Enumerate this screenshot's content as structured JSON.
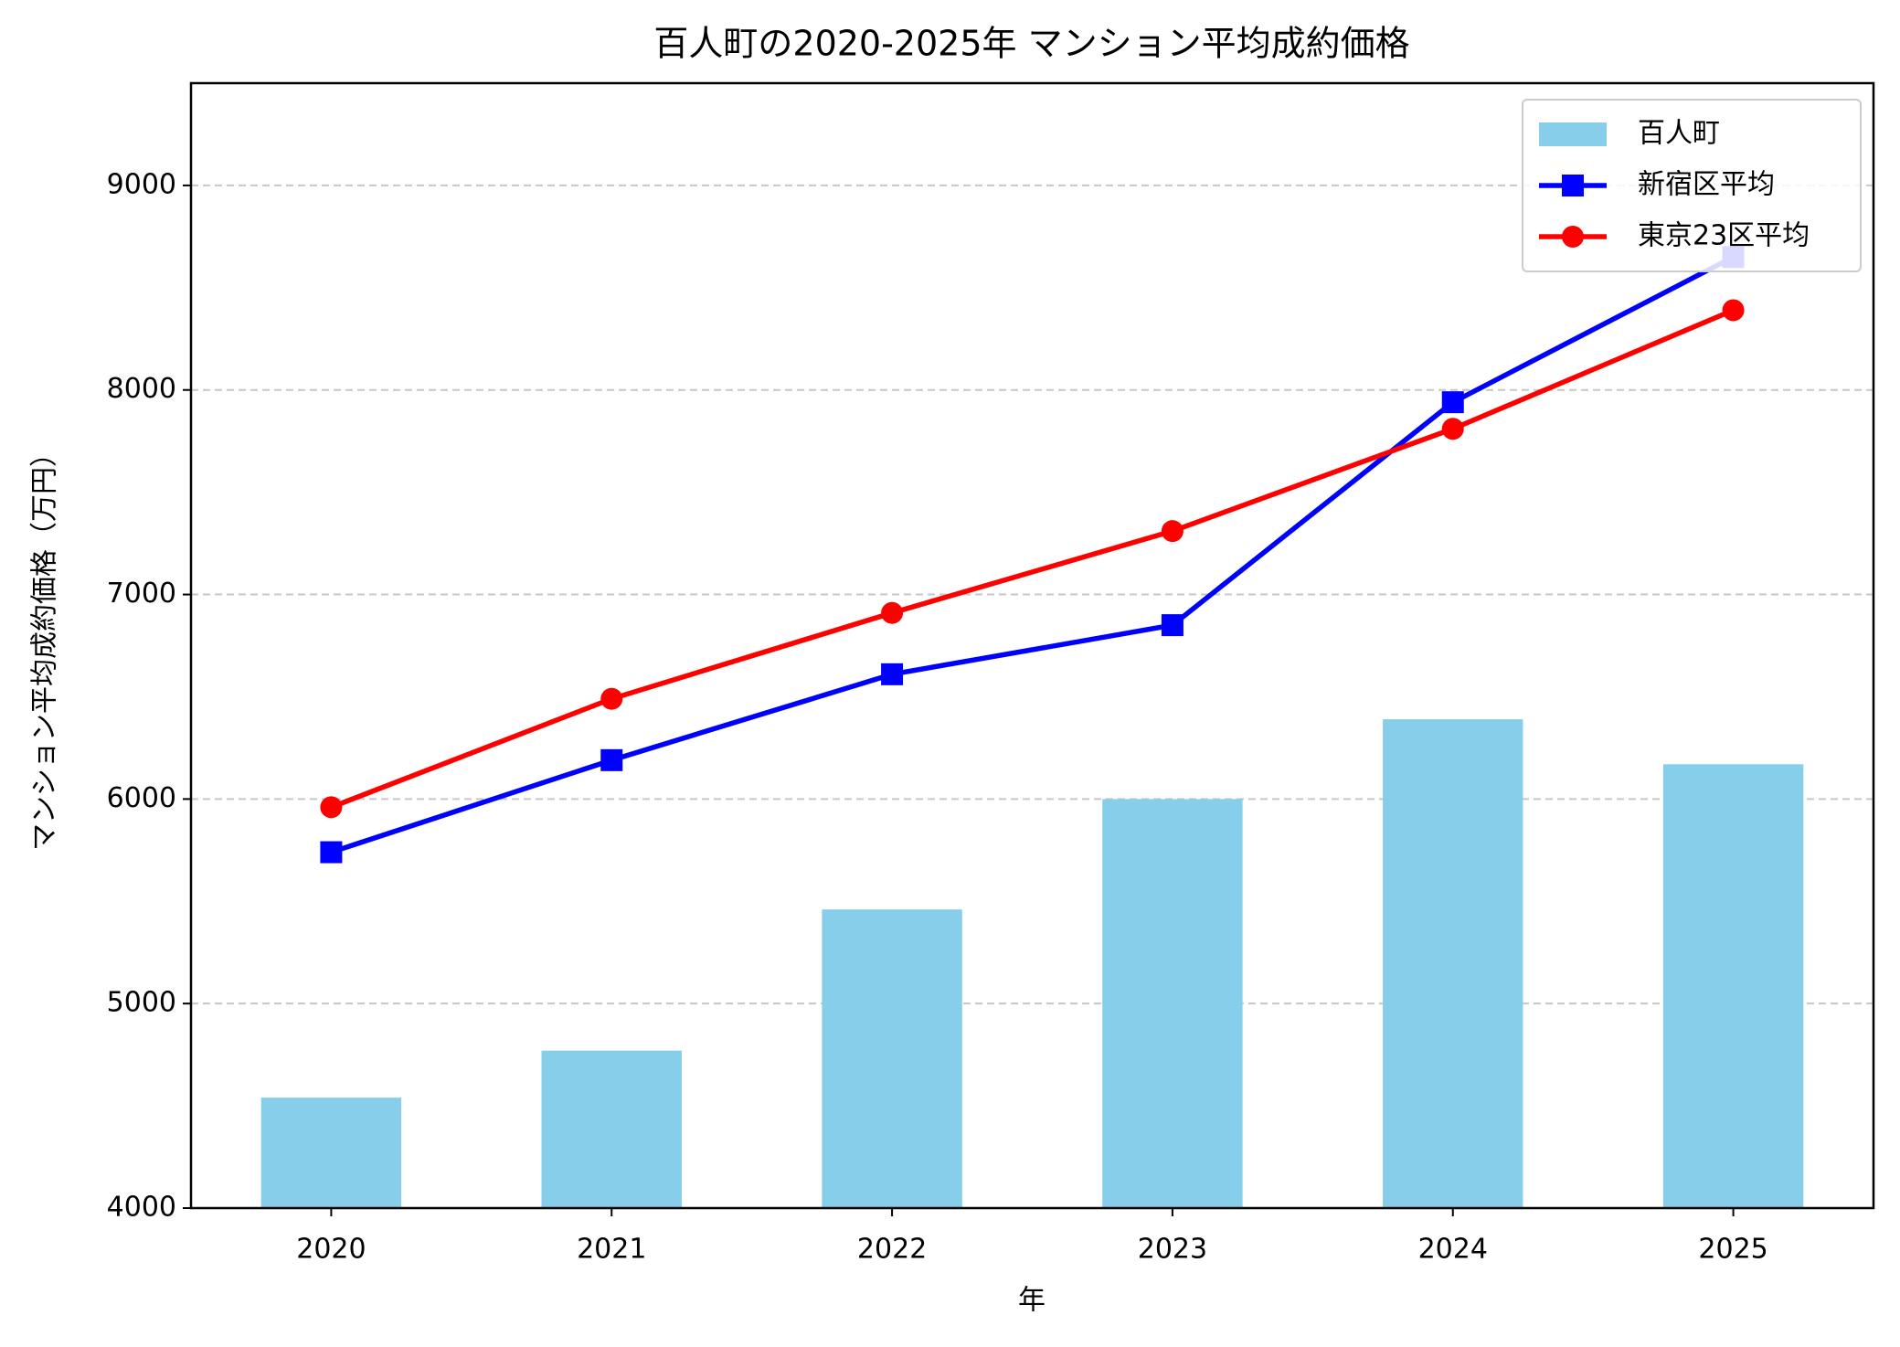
{
  "chart_data": {
    "type": "bar",
    "title": "百人町の2020-2025年 マンション平均成約価格",
    "x_label": "年",
    "y_label": "マンション平均成約価格（万円）",
    "categories": [
      "2020",
      "2021",
      "2022",
      "2023",
      "2024",
      "2025"
    ],
    "series": [
      {
        "name": "百人町",
        "type": "bar",
        "color": "#87ceeb",
        "values": [
          4540,
          4770,
          5460,
          6000,
          6390,
          6170
        ]
      },
      {
        "name": "新宿区平均",
        "type": "line",
        "marker": "square",
        "color": "#0000ff",
        "values": [
          5740,
          6190,
          6610,
          6850,
          7940,
          8650
        ]
      },
      {
        "name": "東京23区平均",
        "type": "line",
        "marker": "circle",
        "color": "#ff0000",
        "values": [
          5960,
          6490,
          6910,
          7310,
          7810,
          8390
        ]
      }
    ],
    "ylim": [
      4000,
      9500
    ],
    "yticks": [
      4000,
      5000,
      6000,
      7000,
      8000,
      9000
    ],
    "grid": true,
    "legend": "upper right"
  }
}
